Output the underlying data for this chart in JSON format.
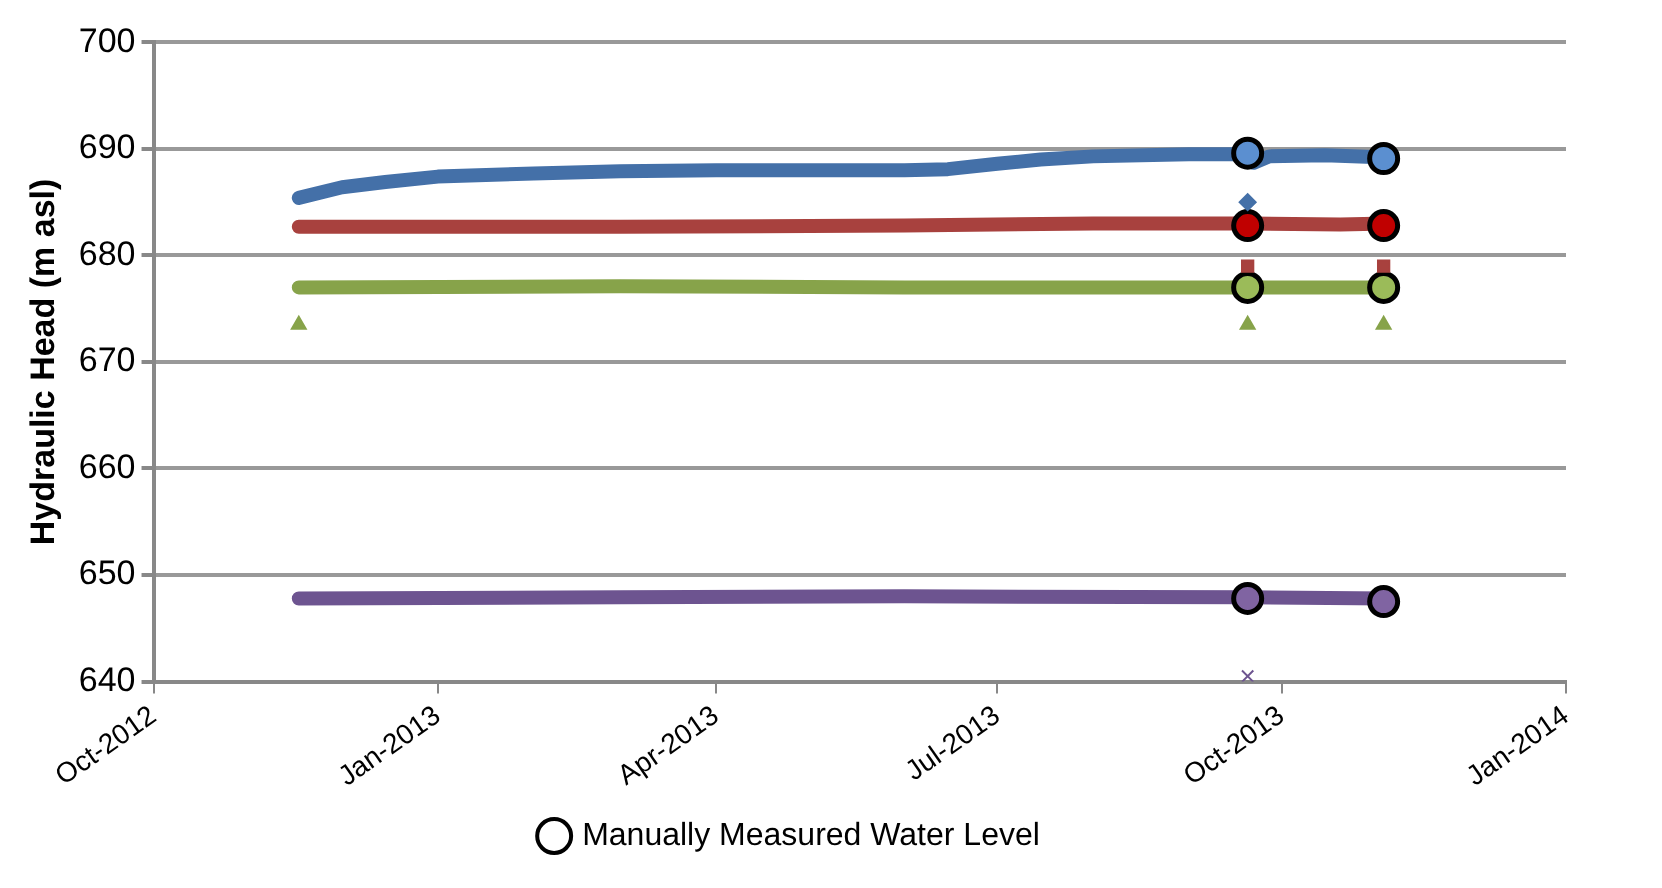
{
  "chart_data": {
    "type": "line",
    "ylabel": "Hydraulic Head (m asl)",
    "xlim": [
      "2012-10-01",
      "2014-01-01"
    ],
    "xticks": [
      {
        "value": "2012-10-01",
        "label": "Oct-2012"
      },
      {
        "value": "2013-01-01",
        "label": "Jan-2013"
      },
      {
        "value": "2013-04-01",
        "label": "Apr-2013"
      },
      {
        "value": "2013-07-01",
        "label": "Jul-2013"
      },
      {
        "value": "2013-10-01",
        "label": "Oct-2013"
      },
      {
        "value": "2014-01-01",
        "label": "Jan-2014"
      }
    ],
    "ylim": [
      640,
      700
    ],
    "yticks": [
      640,
      650,
      660,
      670,
      680,
      690,
      700
    ],
    "grid": "y",
    "legend": "bottom",
    "series": [
      {
        "color": "#4470a8",
        "x": [
          "2012-11-17",
          "2012-12-01",
          "2012-12-15",
          "2013-01-01",
          "2013-02-01",
          "2013-03-01",
          "2013-04-01",
          "2013-05-01",
          "2013-06-01",
          "2013-06-15",
          "2013-07-01",
          "2013-07-15",
          "2013-08-01",
          "2013-09-01",
          "2013-09-19",
          "2013-09-22",
          "2013-09-27",
          "2013-10-15",
          "2013-11-04"
        ],
        "values": [
          685.4,
          686.4,
          686.9,
          687.4,
          687.7,
          687.9,
          688,
          688,
          688,
          688.1,
          688.6,
          689,
          689.3,
          689.5,
          689.5,
          688.7,
          689.3,
          689.4,
          689.2
        ]
      },
      {
        "color": "#a8413e",
        "x": [
          "2012-11-17",
          "2013-03-01",
          "2013-06-01",
          "2013-08-01",
          "2013-09-20",
          "2013-10-20",
          "2013-11-04"
        ],
        "values": [
          682.7,
          682.7,
          682.8,
          683,
          683,
          682.9,
          683
        ]
      },
      {
        "color": "#87a34a",
        "x": [
          "2012-11-17",
          "2013-03-01",
          "2013-06-01",
          "2013-09-20",
          "2013-11-04"
        ],
        "values": [
          677,
          677.1,
          677,
          677,
          677
        ]
      },
      {
        "color": "#6d5490",
        "x": [
          "2012-11-17",
          "2013-03-01",
          "2013-06-01",
          "2013-09-20",
          "2013-11-04"
        ],
        "values": [
          647.8,
          647.9,
          648,
          647.9,
          647.8
        ]
      },
      {
        "type": "scatter",
        "marker": "diamond",
        "color": "#4470a8",
        "x": [
          "2013-09-20"
        ],
        "values": [
          685
        ]
      },
      {
        "type": "scatter",
        "marker": "square",
        "color": "#a8413e",
        "x": [
          "2013-09-20",
          "2013-11-03"
        ],
        "values": [
          679,
          679
        ]
      },
      {
        "type": "scatter",
        "marker": "triangle",
        "color": "#87a34a",
        "x": [
          "2012-11-17",
          "2013-09-20",
          "2013-11-03"
        ],
        "values": [
          673.5,
          673.5,
          673.5
        ]
      },
      {
        "type": "scatter",
        "marker": "cross",
        "color": "#6d5490",
        "x": [
          "2013-09-20"
        ],
        "values": [
          640.5
        ]
      },
      {
        "type": "scatter",
        "marker": "circle",
        "name": "Manually Measured Water Level",
        "x": [
          "2013-09-20",
          "2013-11-03",
          "2013-09-20",
          "2013-11-03",
          "2013-09-20",
          "2013-11-03",
          "2013-09-20",
          "2013-11-03"
        ],
        "values": [
          689.6,
          689.1,
          682.8,
          682.8,
          677,
          677,
          647.8,
          647.5
        ],
        "colors": [
          "#5b8fd0",
          "#5b8fd0",
          "#c00000",
          "#c00000",
          "#9bbb59",
          "#9bbb59",
          "#8064a2",
          "#8064a2"
        ]
      }
    ]
  }
}
